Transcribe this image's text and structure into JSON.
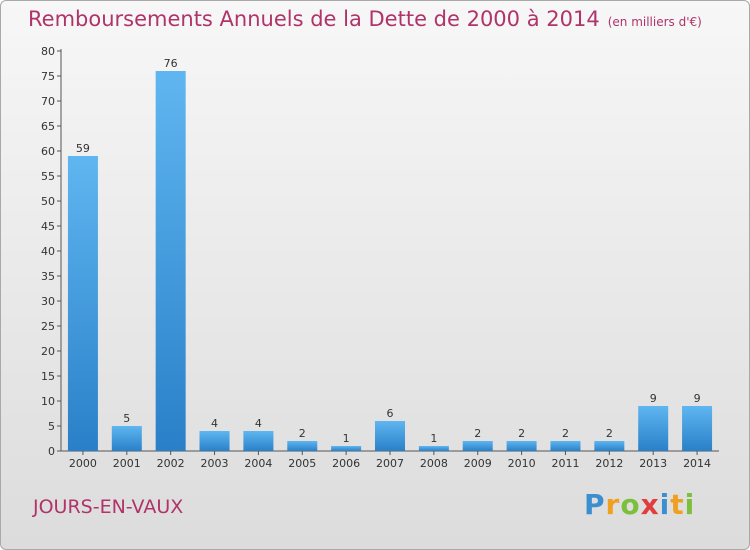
{
  "title": "Remboursements Annuels de la Dette de 2000 à 2014",
  "unit": "(en milliers d'€)",
  "commune": "JOURS-EN-VAUX",
  "logo": "Proxiti",
  "colors": {
    "bar": "#3d9ee6",
    "title": "#b0336a",
    "axis": "#444444"
  },
  "chart_data": {
    "type": "bar",
    "categories": [
      "2000",
      "2001",
      "2002",
      "2003",
      "2004",
      "2005",
      "2006",
      "2007",
      "2008",
      "2009",
      "2010",
      "2011",
      "2012",
      "2013",
      "2014"
    ],
    "values": [
      59,
      5,
      76,
      4,
      4,
      2,
      1,
      6,
      1,
      2,
      2,
      2,
      2,
      9,
      9
    ],
    "ylim": [
      0,
      80
    ],
    "yticks": [
      0,
      5,
      10,
      15,
      20,
      25,
      30,
      35,
      40,
      45,
      50,
      55,
      60,
      65,
      70,
      75,
      80
    ],
    "grid": false,
    "legend": "none"
  }
}
